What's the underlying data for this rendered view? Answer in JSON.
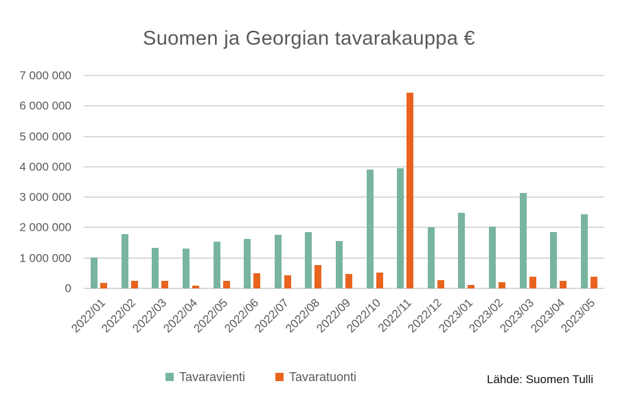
{
  "title": "Suomen ja Georgian tavarakauppa €",
  "source_note": "Lähde: Suomen Tulli",
  "chart_data": {
    "type": "bar",
    "title": "Suomen ja Georgian tavarakauppa €",
    "categories": [
      "2022/01",
      "2022/02",
      "2022/03",
      "2022/04",
      "2022/05",
      "2022/06",
      "2022/07",
      "2022/08",
      "2022/09",
      "2022/10",
      "2022/11",
      "2022/12",
      "2023/01",
      "2023/02",
      "2023/03",
      "2023/04",
      "2023/05"
    ],
    "series": [
      {
        "name": "Tavaravienti",
        "color": "#78b4a0",
        "values": [
          1020000,
          1780000,
          1330000,
          1310000,
          1540000,
          1630000,
          1760000,
          1860000,
          1560000,
          3910000,
          3960000,
          2000000,
          2480000,
          2040000,
          3140000,
          1860000,
          2440000
        ]
      },
      {
        "name": "Tavaratuonti",
        "color": "#e8641e",
        "values": [
          190000,
          240000,
          240000,
          80000,
          240000,
          500000,
          440000,
          760000,
          470000,
          510000,
          6440000,
          270000,
          110000,
          210000,
          390000,
          240000,
          390000
        ]
      }
    ],
    "ylim": [
      0,
      7000000
    ],
    "y_ticks": [
      {
        "value": 0,
        "label": "0"
      },
      {
        "value": 1000000,
        "label": "1 000 000"
      },
      {
        "value": 2000000,
        "label": "2 000 000"
      },
      {
        "value": 3000000,
        "label": "3 000 000"
      },
      {
        "value": 4000000,
        "label": "4 000 000"
      },
      {
        "value": 5000000,
        "label": "5 000 000"
      },
      {
        "value": 6000000,
        "label": "6 000 000"
      },
      {
        "value": 7000000,
        "label": "7 000 000"
      }
    ],
    "grid": true,
    "legend_position": "bottom",
    "x_label_rotation": 45
  },
  "colors": {
    "grid": "#d9d9d9",
    "axis_text": "#595959",
    "title_text": "#595959",
    "source_text": "#111111",
    "background": "#ffffff"
  }
}
